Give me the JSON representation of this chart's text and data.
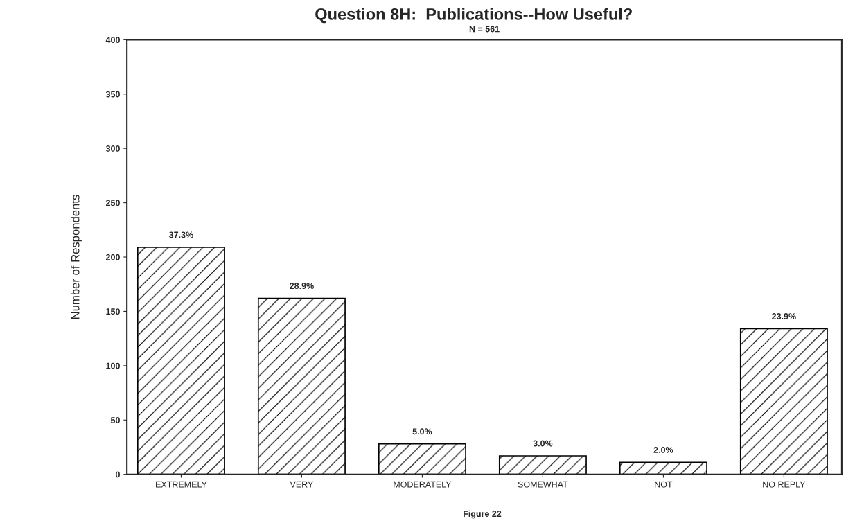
{
  "chart_data": {
    "type": "bar",
    "title": "Question 8H:  Publications--How Useful?",
    "subtitle": "N = 561",
    "ylabel": "Number of Respondents",
    "categories": [
      "EXTREMELY",
      "VERY",
      "MODERATELY",
      "SOMEWHAT",
      "NOT",
      "NO REPLY"
    ],
    "values": [
      209,
      162,
      28,
      17,
      11,
      134
    ],
    "color": "#000000",
    "ylim": [
      0,
      400
    ],
    "yticks": [
      0,
      50,
      100,
      150,
      200,
      250,
      300,
      350,
      400
    ],
    "grid": false,
    "legend": false,
    "annotations": [
      {
        "text": "37.3%",
        "x": "EXTREMELY",
        "y": 209
      },
      {
        "text": "28.9%",
        "x": "VERY",
        "y": 162
      },
      {
        "text": "5.0%",
        "x": "MODERATELY",
        "y": 28
      },
      {
        "text": "3.0%",
        "x": "SOMEWHAT",
        "y": 17
      },
      {
        "text": "2.0%",
        "x": "NOT",
        "y": 11
      },
      {
        "text": "23.9%",
        "x": "NO REPLY",
        "y": 134
      },
      "Figure 22"
    ]
  }
}
